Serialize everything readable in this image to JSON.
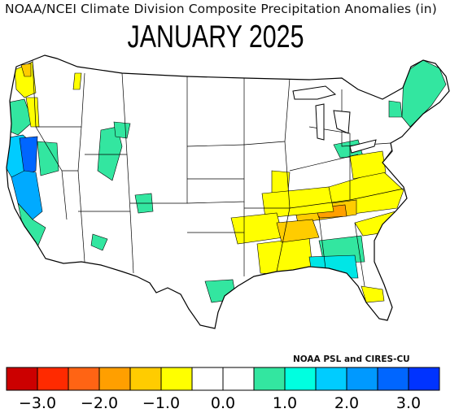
{
  "header": {
    "title": "NOAA/NCEI Climate Division Composite Precipitation Anomalies (in)",
    "period": "JANUARY 2025"
  },
  "credit": "NOAA PSL and CIRES-CU",
  "map_data": {
    "variable": "precipitation anomaly",
    "units": "in",
    "colors": {
      "dry_strong": "#e60000",
      "dry_mid": "#ff7f0e",
      "dry_light": "#ffbf00",
      "dry_slight": "#ffff00",
      "neutral": "#ffffff",
      "wet_slight": "#33e6a0",
      "wet_light": "#00e6e6",
      "wet_mid": "#00aaff",
      "wet_strong": "#0055ff"
    }
  },
  "legend": {
    "bins": [
      {
        "color": "#cc0000"
      },
      {
        "color": "#ff2a00"
      },
      {
        "color": "#ff6414"
      },
      {
        "color": "#ff9f00"
      },
      {
        "color": "#ffcc00"
      },
      {
        "color": "#ffff00"
      },
      {
        "color": "#ffffff"
      },
      {
        "color": "#ffffff"
      },
      {
        "color": "#33e6a0"
      },
      {
        "color": "#00ffe0"
      },
      {
        "color": "#00ccff"
      },
      {
        "color": "#0099ff"
      },
      {
        "color": "#0066ff"
      },
      {
        "color": "#0033ff"
      }
    ],
    "tick_labels": [
      "−3.0",
      "−2.0",
      "−1.0",
      "0.0",
      "1.0",
      "2.0",
      "3.0"
    ]
  }
}
